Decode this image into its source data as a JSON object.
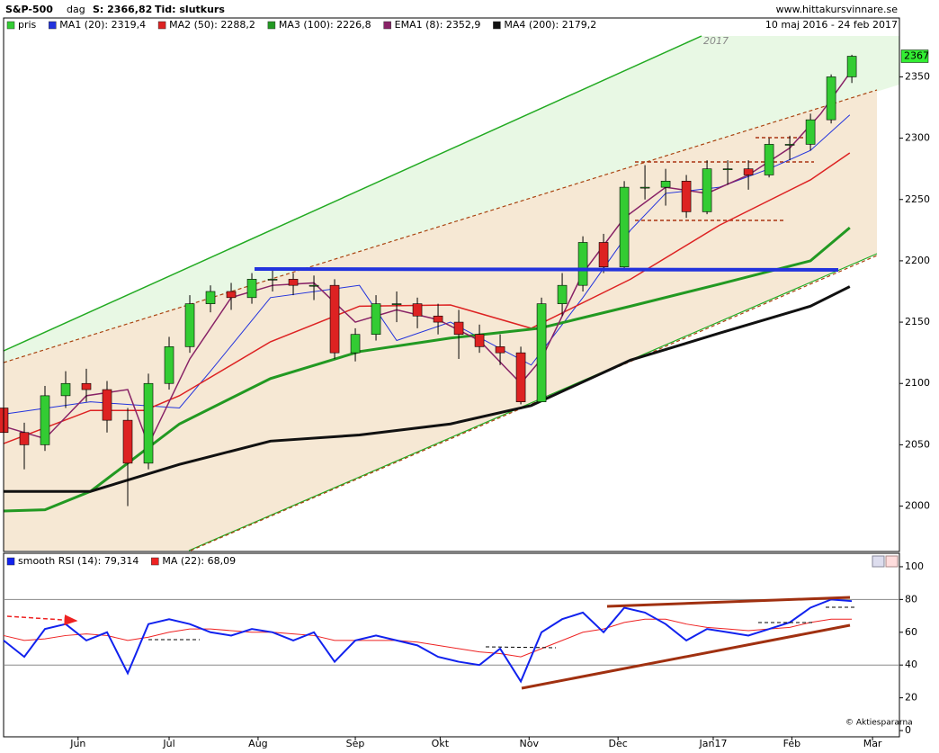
{
  "header": {
    "title": "S&P-500",
    "period": "dag",
    "last": "S: 2366,82",
    "mode": "Tid: slutkurs",
    "site": "www.hittakursvinnare.se",
    "range": "10 maj 2016 - 24 feb 2017"
  },
  "chart_data": [
    {
      "type": "candlestick",
      "annotation": "2017",
      "price_tag": "2367",
      "ylim": [
        1963,
        2398
      ],
      "yticks": [
        2000,
        2050,
        2100,
        2150,
        2200,
        2250,
        2300,
        2350
      ],
      "xlim": [
        0,
        43.3
      ],
      "up_color": "#33cc33",
      "down_color": "#dd2222",
      "price_name": "pris",
      "price_color": "#33cc33",
      "candles": [
        [
          2080,
          2088,
          2040,
          2060
        ],
        [
          2060,
          2068,
          2030,
          2050
        ],
        [
          2050,
          2098,
          2045,
          2090
        ],
        [
          2090,
          2110,
          2080,
          2100
        ],
        [
          2100,
          2112,
          2085,
          2095
        ],
        [
          2095,
          2102,
          2060,
          2070
        ],
        [
          2070,
          2080,
          2000,
          2035
        ],
        [
          2035,
          2108,
          2030,
          2100
        ],
        [
          2100,
          2138,
          2095,
          2130
        ],
        [
          2130,
          2172,
          2125,
          2165
        ],
        [
          2165,
          2180,
          2158,
          2175
        ],
        [
          2175,
          2182,
          2160,
          2170
        ],
        [
          2170,
          2190,
          2165,
          2185
        ],
        [
          2185,
          2192,
          2175,
          2185
        ],
        [
          2185,
          2190,
          2172,
          2180
        ],
        [
          2180,
          2188,
          2168,
          2180
        ],
        [
          2180,
          2185,
          2120,
          2125
        ],
        [
          2125,
          2145,
          2118,
          2140
        ],
        [
          2140,
          2172,
          2135,
          2165
        ],
        [
          2165,
          2175,
          2150,
          2165
        ],
        [
          2165,
          2170,
          2145,
          2155
        ],
        [
          2155,
          2165,
          2140,
          2150
        ],
        [
          2150,
          2160,
          2120,
          2140
        ],
        [
          2140,
          2148,
          2125,
          2130
        ],
        [
          2130,
          2140,
          2115,
          2125
        ],
        [
          2125,
          2130,
          2083,
          2085
        ],
        [
          2085,
          2170,
          2085,
          2165
        ],
        [
          2165,
          2190,
          2155,
          2180
        ],
        [
          2180,
          2220,
          2175,
          2215
        ],
        [
          2215,
          2222,
          2190,
          2195
        ],
        [
          2195,
          2265,
          2192,
          2260
        ],
        [
          2260,
          2278,
          2250,
          2260
        ],
        [
          2260,
          2275,
          2245,
          2265
        ],
        [
          2265,
          2270,
          2235,
          2240
        ],
        [
          2240,
          2282,
          2238,
          2275
        ],
        [
          2275,
          2282,
          2262,
          2275
        ],
        [
          2275,
          2282,
          2258,
          2270
        ],
        [
          2270,
          2300,
          2268,
          2295
        ],
        [
          2295,
          2302,
          2282,
          2295
        ],
        [
          2295,
          2320,
          2290,
          2315
        ],
        [
          2315,
          2352,
          2312,
          2350
        ],
        [
          2350,
          2368,
          2345,
          2366.82
        ]
      ],
      "series": [
        {
          "name": "MA1 (20): 2319,4",
          "color": "#2233dd",
          "width": 1,
          "x": [
            0,
            4.2,
            8.5,
            10,
            12.9,
            17.2,
            19,
            21.6,
            25.5,
            28,
            30.3,
            32,
            34.6,
            37,
            39,
            40.9
          ],
          "values": [
            2075,
            2085,
            2080,
            2110,
            2170,
            2180,
            2135,
            2150,
            2115,
            2170,
            2225,
            2255,
            2260,
            2275,
            2290,
            2319
          ]
        },
        {
          "name": "MA2 (50): 2288,2",
          "color": "#dd2222",
          "width": 1.5,
          "x": [
            0,
            4.2,
            6.8,
            8.5,
            12.9,
            17.2,
            21.6,
            25.5,
            30.3,
            34.6,
            39,
            40.9
          ],
          "values": [
            2051,
            2078,
            2078,
            2090,
            2134,
            2163,
            2164,
            2145,
            2185,
            2229,
            2266,
            2288
          ]
        },
        {
          "name": "MA3 (100): 2226,8",
          "color": "#229922",
          "width": 3,
          "x": [
            0,
            2,
            4.2,
            8.5,
            12.9,
            17.2,
            21.6,
            25.9,
            30.3,
            34.6,
            39,
            40.9
          ],
          "values": [
            1996,
            1997,
            2012,
            2067,
            2104,
            2126,
            2137,
            2145,
            2163,
            2181,
            2200,
            2227
          ]
        },
        {
          "name": "EMA1 (8): 2352,9",
          "color": "#882266",
          "width": 1.5,
          "x": [
            0,
            2,
            4,
            6,
            7,
            9,
            11,
            13,
            15,
            17,
            19,
            21,
            23,
            25,
            26,
            28,
            30,
            32,
            34,
            36,
            38,
            39.5,
            40.9
          ],
          "values": [
            2065,
            2055,
            2090,
            2095,
            2050,
            2120,
            2170,
            2180,
            2182,
            2150,
            2160,
            2152,
            2135,
            2100,
            2120,
            2190,
            2235,
            2260,
            2255,
            2270,
            2292,
            2320,
            2353
          ]
        },
        {
          "name": "MA4 (200): 2179,2",
          "color": "#111111",
          "width": 3,
          "x": [
            0,
            4.2,
            8.5,
            12.9,
            17.2,
            21.6,
            25.5,
            30.3,
            34.6,
            39,
            40.9
          ],
          "values": [
            2012,
            2012,
            2034,
            2053,
            2058,
            2067,
            2082,
            2119,
            2141,
            2163,
            2179
          ]
        }
      ]
    },
    {
      "type": "line",
      "ylim": [
        -3.8,
        108.2
      ],
      "yticks": [
        0,
        20,
        40,
        60,
        80,
        100
      ],
      "grid_values": [
        40,
        80
      ],
      "xlim": [
        0,
        43.3
      ],
      "xticks": [
        {
          "value": 3.6,
          "label": "Jun"
        },
        {
          "value": 8.0,
          "label": "Jul"
        },
        {
          "value": 12.3,
          "label": "Aug"
        },
        {
          "value": 17.0,
          "label": "Sep"
        },
        {
          "value": 21.1,
          "label": "Okt"
        },
        {
          "value": 25.4,
          "label": "Nov"
        },
        {
          "value": 29.7,
          "label": "Dec"
        },
        {
          "value": 34.3,
          "label": "Jan17"
        },
        {
          "value": 38.1,
          "label": "Feb"
        },
        {
          "value": 42.0,
          "label": "Mar"
        }
      ],
      "credit": "© Aktiespararna",
      "series": [
        {
          "name": "smooth RSI (14): 79,314",
          "color": "#1122ee",
          "width": 2,
          "values": [
            55,
            45,
            62,
            65,
            55,
            60,
            35,
            65,
            68,
            65,
            60,
            58,
            62,
            60,
            55,
            60,
            42,
            55,
            58,
            55,
            52,
            45,
            42,
            40,
            50,
            30,
            60,
            68,
            72,
            60,
            75,
            72,
            65,
            55,
            62,
            60,
            58,
            62,
            66,
            75,
            80,
            79
          ]
        },
        {
          "name": "MA (22): 68,09",
          "color": "#ee2222",
          "width": 1,
          "values": [
            58,
            55,
            56,
            58,
            59,
            58,
            55,
            57,
            60,
            62,
            62,
            61,
            60,
            60,
            59,
            58,
            55,
            55,
            55,
            55,
            54,
            52,
            50,
            48,
            47,
            45,
            50,
            55,
            60,
            62,
            66,
            68,
            68,
            65,
            63,
            62,
            61,
            62,
            63,
            66,
            68,
            68
          ]
        }
      ]
    }
  ]
}
